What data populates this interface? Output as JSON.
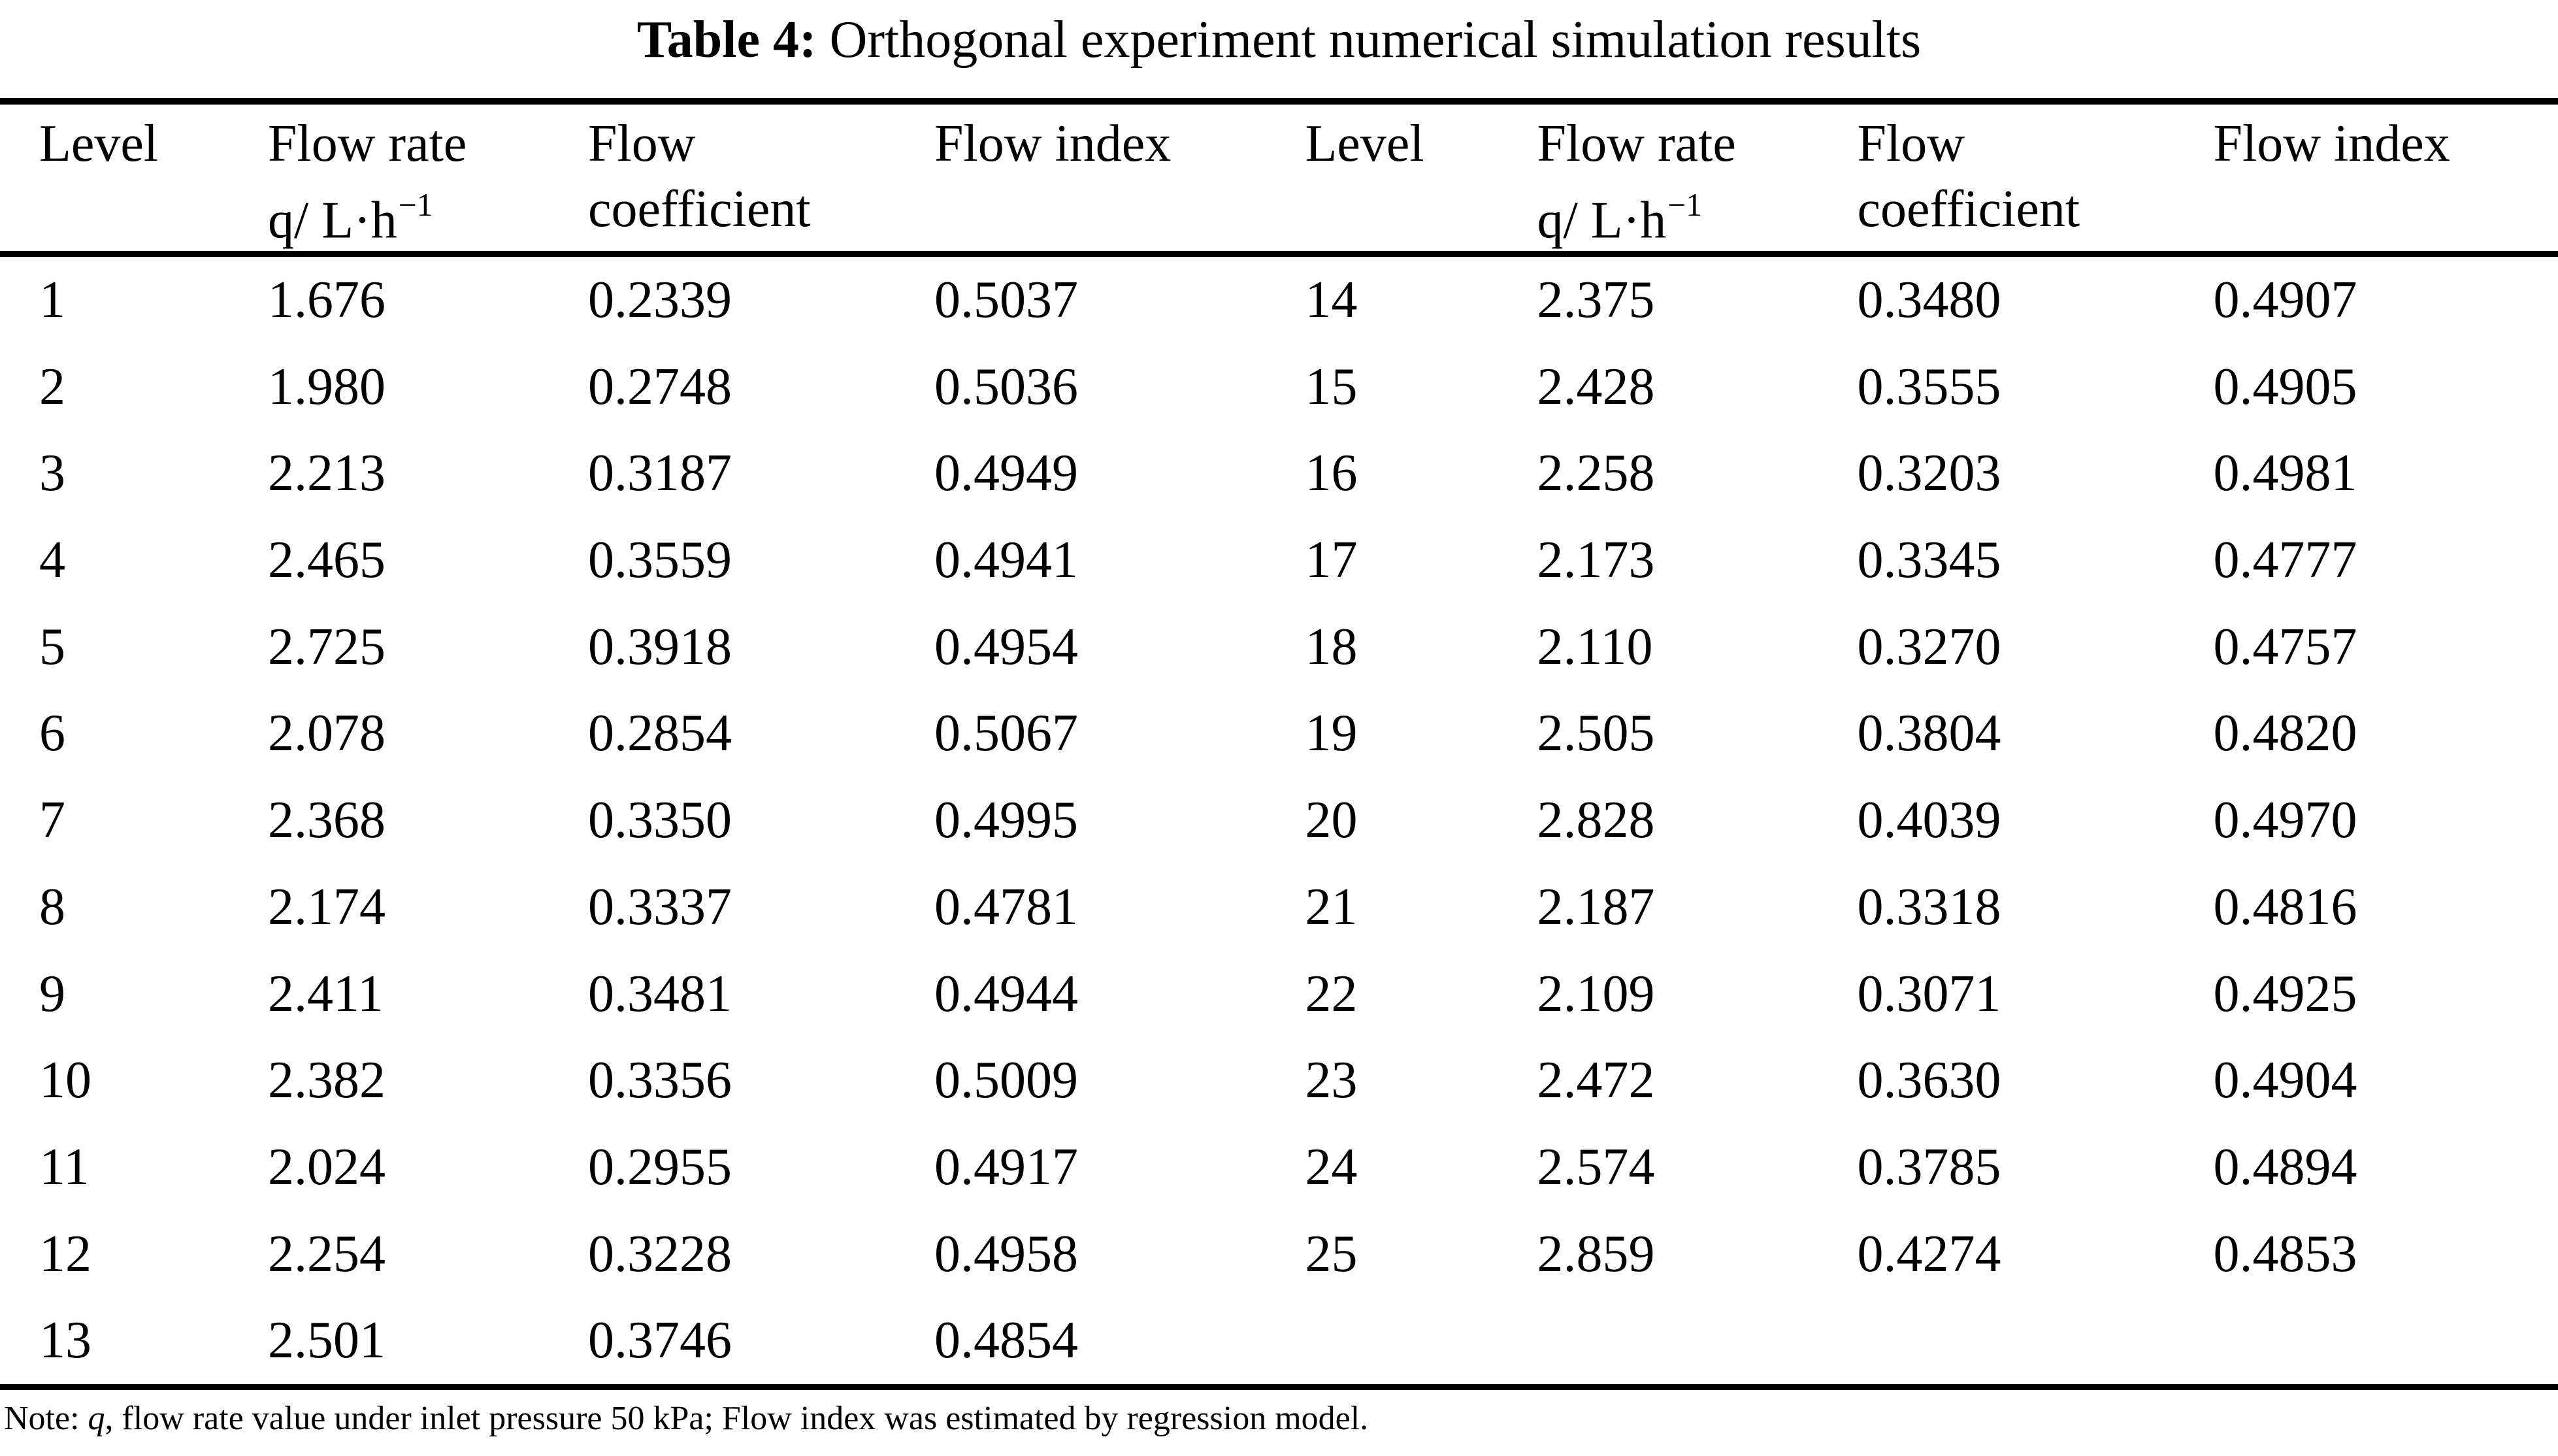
{
  "title": {
    "prefix": "Table 4:",
    "text": " Orthogonal experiment numerical simulation results"
  },
  "columns": {
    "level": "Level",
    "flow_rate": "Flow rate",
    "flow_rate_unit": "q/ L·h",
    "flow_rate_sup": "−1",
    "flow_coeff_line1": "Flow",
    "flow_coeff_line2": "coefficient",
    "flow_index": "Flow index"
  },
  "left_rows": [
    {
      "level": "1",
      "flow_rate": "1.676",
      "flow_coefficient": "0.2339",
      "flow_index": "0.5037"
    },
    {
      "level": "2",
      "flow_rate": "1.980",
      "flow_coefficient": "0.2748",
      "flow_index": "0.5036"
    },
    {
      "level": "3",
      "flow_rate": "2.213",
      "flow_coefficient": "0.3187",
      "flow_index": "0.4949"
    },
    {
      "level": "4",
      "flow_rate": "2.465",
      "flow_coefficient": "0.3559",
      "flow_index": "0.4941"
    },
    {
      "level": "5",
      "flow_rate": "2.725",
      "flow_coefficient": "0.3918",
      "flow_index": "0.4954"
    },
    {
      "level": "6",
      "flow_rate": "2.078",
      "flow_coefficient": "0.2854",
      "flow_index": "0.5067"
    },
    {
      "level": "7",
      "flow_rate": "2.368",
      "flow_coefficient": "0.3350",
      "flow_index": "0.4995"
    },
    {
      "level": "8",
      "flow_rate": "2.174",
      "flow_coefficient": "0.3337",
      "flow_index": "0.4781"
    },
    {
      "level": "9",
      "flow_rate": "2.411",
      "flow_coefficient": "0.3481",
      "flow_index": "0.4944"
    },
    {
      "level": "10",
      "flow_rate": "2.382",
      "flow_coefficient": "0.3356",
      "flow_index": "0.5009"
    },
    {
      "level": "11",
      "flow_rate": "2.024",
      "flow_coefficient": "0.2955",
      "flow_index": "0.4917"
    },
    {
      "level": "12",
      "flow_rate": "2.254",
      "flow_coefficient": "0.3228",
      "flow_index": "0.4958"
    },
    {
      "level": "13",
      "flow_rate": "2.501",
      "flow_coefficient": "0.3746",
      "flow_index": "0.4854"
    }
  ],
  "right_rows": [
    {
      "level": "14",
      "flow_rate": "2.375",
      "flow_coefficient": "0.3480",
      "flow_index": "0.4907"
    },
    {
      "level": "15",
      "flow_rate": "2.428",
      "flow_coefficient": "0.3555",
      "flow_index": "0.4905"
    },
    {
      "level": "16",
      "flow_rate": "2.258",
      "flow_coefficient": "0.3203",
      "flow_index": "0.4981"
    },
    {
      "level": "17",
      "flow_rate": "2.173",
      "flow_coefficient": "0.3345",
      "flow_index": "0.4777"
    },
    {
      "level": "18",
      "flow_rate": "2.110",
      "flow_coefficient": "0.3270",
      "flow_index": "0.4757"
    },
    {
      "level": "19",
      "flow_rate": "2.505",
      "flow_coefficient": "0.3804",
      "flow_index": "0.4820"
    },
    {
      "level": "20",
      "flow_rate": "2.828",
      "flow_coefficient": "0.4039",
      "flow_index": "0.4970"
    },
    {
      "level": "21",
      "flow_rate": "2.187",
      "flow_coefficient": "0.3318",
      "flow_index": "0.4816"
    },
    {
      "level": "22",
      "flow_rate": "2.109",
      "flow_coefficient": "0.3071",
      "flow_index": "0.4925"
    },
    {
      "level": "23",
      "flow_rate": "2.472",
      "flow_coefficient": "0.3630",
      "flow_index": "0.4904"
    },
    {
      "level": "24",
      "flow_rate": "2.574",
      "flow_coefficient": "0.3785",
      "flow_index": "0.4894"
    },
    {
      "level": "25",
      "flow_rate": "2.859",
      "flow_coefficient": "0.4274",
      "flow_index": "0.4853"
    }
  ],
  "note": {
    "prefix": "Note: ",
    "q": "q",
    "rest": ", flow rate value under inlet pressure 50 kPa; Flow index was estimated by regression model."
  }
}
